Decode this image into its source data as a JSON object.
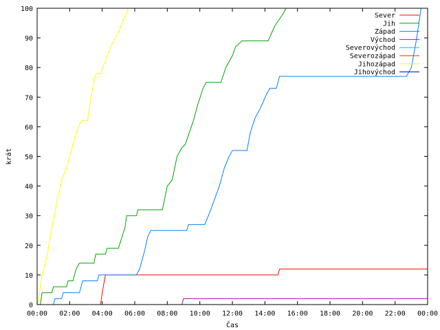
{
  "chart_data": {
    "type": "line",
    "title": "",
    "xlabel": "Čas",
    "ylabel": "krát",
    "xlim": [
      0,
      24
    ],
    "ylim": [
      0,
      100
    ],
    "x_ticks": [
      "00:00",
      "02:00",
      "04:00",
      "06:00",
      "08:00",
      "10:00",
      "12:00",
      "14:00",
      "16:00",
      "18:00",
      "20:00",
      "22:00",
      "00:00"
    ],
    "y_ticks": [
      "0",
      "10",
      "20",
      "30",
      "40",
      "50",
      "60",
      "70",
      "80",
      "90",
      "100"
    ],
    "grid": false,
    "legend_position": "top-right",
    "series": [
      {
        "name": "Sever",
        "color": "#ff0000",
        "points": [
          [
            0,
            0
          ],
          [
            3.9,
            0
          ],
          [
            4.0,
            4
          ],
          [
            4.1,
            7
          ],
          [
            4.2,
            10
          ],
          [
            14.8,
            10
          ],
          [
            14.9,
            12
          ],
          [
            24,
            12
          ]
        ]
      },
      {
        "name": "Jih",
        "color": "#00a000",
        "points": [
          [
            0,
            0
          ],
          [
            0.2,
            0
          ],
          [
            0.3,
            4
          ],
          [
            0.9,
            4
          ],
          [
            1.0,
            6
          ],
          [
            1.8,
            6
          ],
          [
            1.9,
            8
          ],
          [
            2.2,
            8
          ],
          [
            2.4,
            12
          ],
          [
            2.6,
            14
          ],
          [
            3.5,
            14
          ],
          [
            3.6,
            17
          ],
          [
            4.2,
            17
          ],
          [
            4.3,
            19
          ],
          [
            5.0,
            19
          ],
          [
            5.4,
            26
          ],
          [
            5.5,
            30
          ],
          [
            6.1,
            30
          ],
          [
            6.2,
            32
          ],
          [
            7.7,
            32
          ],
          [
            8.0,
            40
          ],
          [
            8.3,
            42
          ],
          [
            8.6,
            50
          ],
          [
            8.9,
            53
          ],
          [
            9.1,
            54
          ],
          [
            9.6,
            62
          ],
          [
            9.9,
            68
          ],
          [
            10.2,
            73
          ],
          [
            10.4,
            75
          ],
          [
            11.3,
            75
          ],
          [
            11.6,
            80
          ],
          [
            12.0,
            84
          ],
          [
            12.2,
            87
          ],
          [
            12.6,
            89
          ],
          [
            14.2,
            89
          ],
          [
            14.6,
            94
          ],
          [
            15.1,
            98
          ],
          [
            15.3,
            100
          ]
        ]
      },
      {
        "name": "Západ",
        "color": "#0080ff",
        "points": [
          [
            0,
            0
          ],
          [
            1.0,
            0
          ],
          [
            1.1,
            2
          ],
          [
            1.5,
            2
          ],
          [
            1.6,
            4
          ],
          [
            2.6,
            4
          ],
          [
            2.8,
            8
          ],
          [
            3.7,
            8
          ],
          [
            3.8,
            10
          ],
          [
            6.1,
            10
          ],
          [
            6.3,
            12
          ],
          [
            6.6,
            18
          ],
          [
            6.8,
            23
          ],
          [
            7.0,
            25
          ],
          [
            9.2,
            25
          ],
          [
            9.3,
            27
          ],
          [
            10.3,
            27
          ],
          [
            10.6,
            31
          ],
          [
            11.2,
            40
          ],
          [
            11.5,
            46
          ],
          [
            11.8,
            50
          ],
          [
            12.0,
            52
          ],
          [
            12.9,
            52
          ],
          [
            13.1,
            58
          ],
          [
            13.4,
            63
          ],
          [
            13.7,
            66
          ],
          [
            14.1,
            71
          ],
          [
            14.3,
            73
          ],
          [
            14.7,
            73
          ],
          [
            14.9,
            77
          ],
          [
            22.7,
            77
          ],
          [
            23.0,
            80
          ],
          [
            23.3,
            89
          ],
          [
            23.6,
            100
          ]
        ]
      },
      {
        "name": "Východ",
        "color": "#c000c0",
        "points": [
          [
            0,
            0
          ],
          [
            8.9,
            0
          ],
          [
            9.0,
            2
          ],
          [
            24,
            2
          ]
        ]
      },
      {
        "name": "Severovýchod",
        "color": "#00c0ff",
        "points": []
      },
      {
        "name": "Severozápad",
        "color": "#c04000",
        "points": []
      },
      {
        "name": "Jihozápad",
        "color": "#ffff00",
        "points": [
          [
            0,
            0
          ],
          [
            0.1,
            2
          ],
          [
            0.3,
            10
          ],
          [
            0.6,
            16
          ],
          [
            0.9,
            26
          ],
          [
            1.2,
            34
          ],
          [
            1.5,
            42
          ],
          [
            1.8,
            46
          ],
          [
            2.1,
            52
          ],
          [
            2.4,
            58
          ],
          [
            2.7,
            62
          ],
          [
            3.1,
            62
          ],
          [
            3.3,
            70
          ],
          [
            3.6,
            78
          ],
          [
            3.9,
            78
          ],
          [
            4.3,
            84
          ],
          [
            4.6,
            88
          ],
          [
            5.0,
            92
          ],
          [
            5.3,
            96
          ],
          [
            5.6,
            100
          ]
        ]
      },
      {
        "name": "Jihovýchod",
        "color": "#0000c0",
        "points": []
      }
    ]
  }
}
